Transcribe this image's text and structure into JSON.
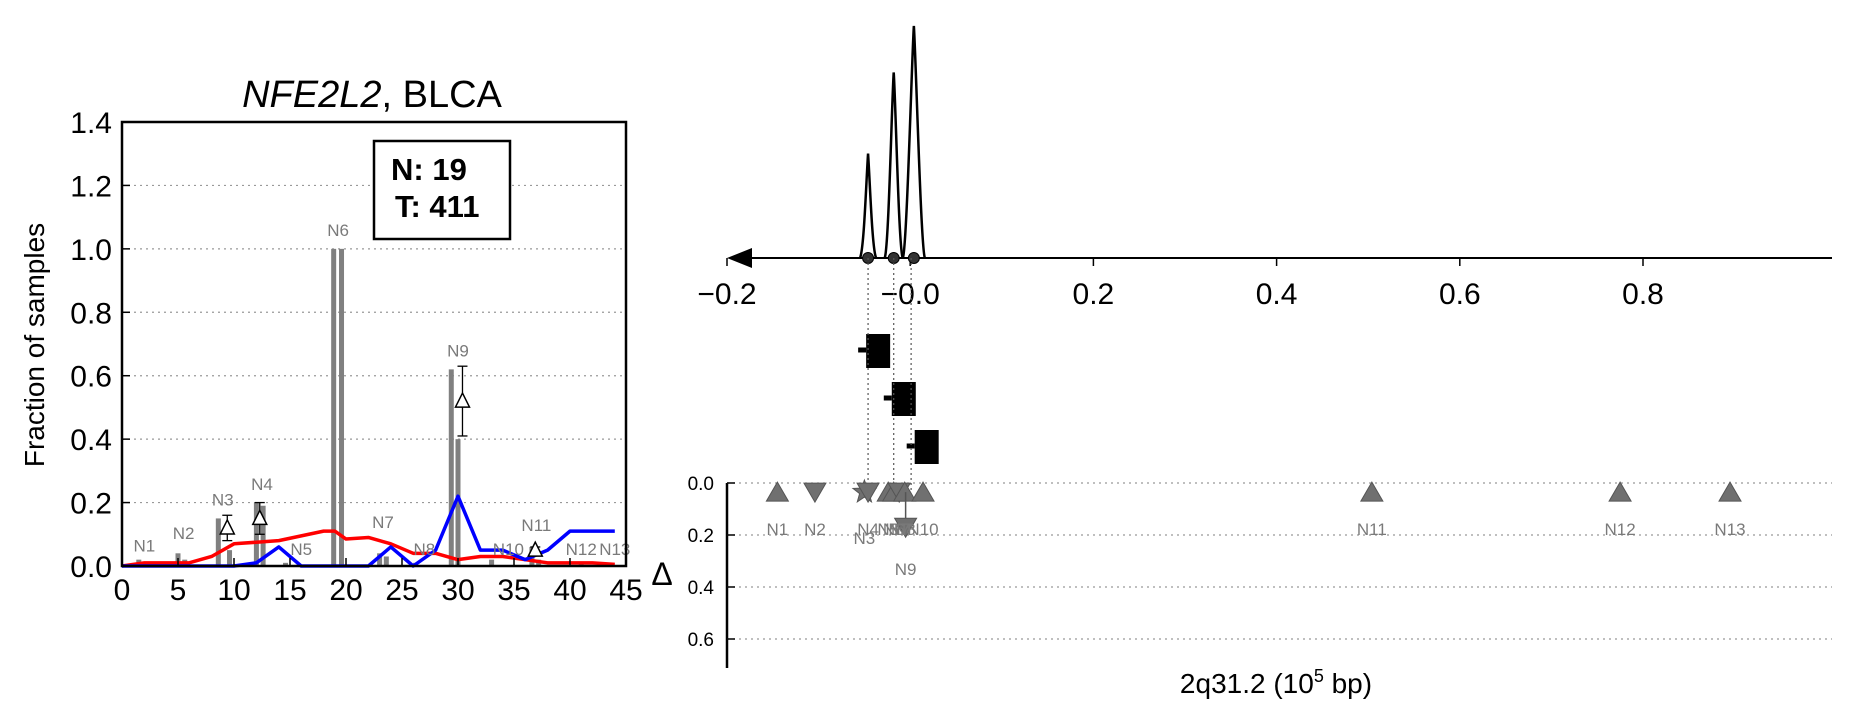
{
  "chart_data": [
    {
      "type": "bar",
      "title": {
        "gene": "NFE2L2",
        "sep": ",",
        "cohort": " BLCA"
      },
      "ylabel": "Fraction of samples",
      "xlim": [
        0,
        45
      ],
      "ylim": [
        0,
        1.4
      ],
      "xticks": [
        "0",
        "5",
        "10",
        "15",
        "20",
        "25",
        "30",
        "35",
        "40",
        "45"
      ],
      "yticks": [
        "0.0",
        "0.2",
        "0.4",
        "0.6",
        "0.8",
        "1.0",
        "1.2",
        "1.4"
      ],
      "grid": "horizontal dotted",
      "legend_box": {
        "n_label": "N: 19",
        "t_label": "T: 411",
        "placement": "top-right"
      },
      "bar_color": "#808080",
      "bars": [
        {
          "x": 1.5,
          "value": 0.02
        },
        {
          "x": 2.2,
          "value": 0.01
        },
        {
          "x": 5.0,
          "value": 0.04
        },
        {
          "x": 5.6,
          "value": 0.02
        },
        {
          "x": 8.6,
          "value": 0.15
        },
        {
          "x": 9.6,
          "value": 0.05
        },
        {
          "x": 12.0,
          "value": 0.2
        },
        {
          "x": 12.6,
          "value": 0.19
        },
        {
          "x": 14.6,
          "value": 0.01
        },
        {
          "x": 18.9,
          "value": 1.0
        },
        {
          "x": 19.6,
          "value": 1.0
        },
        {
          "x": 23.0,
          "value": 0.04
        },
        {
          "x": 23.6,
          "value": 0.03
        },
        {
          "x": 26.2,
          "value": 0.01
        },
        {
          "x": 29.4,
          "value": 0.62
        },
        {
          "x": 30.0,
          "value": 0.4
        },
        {
          "x": 33.0,
          "value": 0.02
        },
        {
          "x": 36.6,
          "value": 0.06
        },
        {
          "x": 37.2,
          "value": 0.02
        },
        {
          "x": 41.0,
          "value": 0.01
        },
        {
          "x": 43.0,
          "value": 0.01
        }
      ],
      "gene_labels": [
        {
          "text": "N1",
          "x": 2.0,
          "y": 0.045
        },
        {
          "text": "N2",
          "x": 5.5,
          "y": 0.085
        },
        {
          "text": "N3",
          "x": 9.0,
          "y": 0.19
        },
        {
          "text": "N4",
          "x": 12.5,
          "y": 0.24
        },
        {
          "text": "N5",
          "x": 16.0,
          "y": 0.035
        },
        {
          "text": "N6",
          "x": 19.3,
          "y": 1.04
        },
        {
          "text": "N7",
          "x": 23.3,
          "y": 0.12
        },
        {
          "text": "N8",
          "x": 27.0,
          "y": 0.035
        },
        {
          "text": "N9",
          "x": 30.0,
          "y": 0.66
        },
        {
          "text": "N10",
          "x": 34.5,
          "y": 0.035
        },
        {
          "text": "N11",
          "x": 37.0,
          "y": 0.11
        },
        {
          "text": "N12",
          "x": 41.0,
          "y": 0.035
        },
        {
          "text": "N13",
          "x": 44.0,
          "y": 0.035
        }
      ],
      "delta_markers": [
        {
          "x": 9.4,
          "y": 0.12,
          "err": 0.04
        },
        {
          "x": 12.3,
          "y": 0.15,
          "err": 0.05
        },
        {
          "x": 30.4,
          "y": 0.52,
          "err": 0.11
        },
        {
          "x": 36.9,
          "y": 0.05,
          "err": 0.01
        }
      ],
      "series": [
        {
          "color": "#ff0000",
          "x": [
            0,
            2,
            4,
            6,
            8,
            10,
            12,
            14,
            16,
            18,
            19,
            20,
            22,
            24,
            26,
            28,
            30,
            32,
            34,
            36,
            38,
            40,
            42,
            44
          ],
          "values": [
            0,
            0.01,
            0.01,
            0.01,
            0.03,
            0.07,
            0.075,
            0.08,
            0.095,
            0.11,
            0.11,
            0.085,
            0.09,
            0.07,
            0.04,
            0.04,
            0.02,
            0.03,
            0.03,
            0.02,
            0.01,
            0.01,
            0.01,
            0.005
          ]
        },
        {
          "color": "#0000ff",
          "x": [
            0,
            10,
            12,
            14,
            16,
            22,
            24,
            26,
            28,
            30,
            32,
            34,
            36,
            38,
            40,
            44
          ],
          "values": [
            0,
            0,
            0.01,
            0.06,
            0,
            0,
            0.06,
            0,
            0.05,
            0.22,
            0.05,
            0.05,
            0.02,
            0.05,
            0.11,
            0.11
          ]
        }
      ]
    },
    {
      "type": "line",
      "xlim": [
        -0.2,
        0.97
      ],
      "xticks": [
        "−0.2",
        "−0.0",
        "0.2",
        "0.4",
        "0.6",
        "0.8"
      ],
      "peaks": [
        {
          "x": -0.046,
          "height": 0.45
        },
        {
          "x": -0.018,
          "height": 0.8
        },
        {
          "x": 0.004,
          "height": 1.0
        }
      ],
      "squares": [
        {
          "x": -0.035
        },
        {
          "x": -0.007
        },
        {
          "x": 0.018
        }
      ]
    },
    {
      "type": "scatter",
      "ylabel": "Δ",
      "xlabel_parts": {
        "pre": "2q31.2 (10",
        "sup": "5",
        "post": " bp)"
      },
      "yticks": [
        "0.0",
        "0.2",
        "0.4",
        "0.6"
      ],
      "ylim": [
        0,
        0.7
      ],
      "marker_color": "#707070",
      "points": [
        {
          "label": "N1",
          "x": -0.145,
          "shape": "up"
        },
        {
          "label": "N2",
          "x": -0.104,
          "shape": "down"
        },
        {
          "label": "N3",
          "x": -0.05,
          "shape": "star"
        },
        {
          "label": "N4",
          "x": -0.046,
          "shape": "down"
        },
        {
          "label": "N5",
          "x": -0.024,
          "shape": "up"
        },
        {
          "label": "N6",
          "x": -0.018,
          "shape": "up"
        },
        {
          "label": "N7",
          "x": -0.012,
          "shape": "down"
        },
        {
          "label": "N8",
          "x": -0.006,
          "shape": "up"
        },
        {
          "label": "N9",
          "x": -0.005,
          "shape": "down-low"
        },
        {
          "label": "N10",
          "x": 0.014,
          "shape": "up"
        },
        {
          "label": "N11",
          "x": 0.504,
          "shape": "up"
        },
        {
          "label": "N12",
          "x": 0.775,
          "shape": "up"
        },
        {
          "label": "N13",
          "x": 0.895,
          "shape": "up"
        }
      ]
    }
  ]
}
